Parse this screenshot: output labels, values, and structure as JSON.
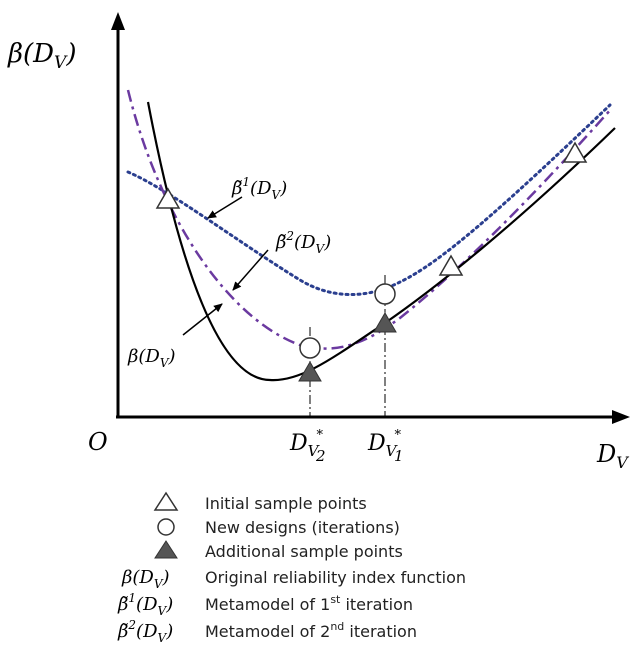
{
  "axes": {
    "y_label": "β(D",
    "y_label_sub": "V",
    "y_label_close": ")",
    "x_label": "D",
    "x_label_sub": "V",
    "origin": "O"
  },
  "markers": {
    "dv2_main": "D",
    "dv2_sub": "V",
    "dv2_sup": "*",
    "dv2_idx": "2",
    "dv1_main": "D",
    "dv1_sub": "V",
    "dv1_sup": "*",
    "dv1_idx": "1"
  },
  "curve_labels": {
    "beta1_main": "β̃",
    "beta1_sup": "1",
    "beta1_arg": "(D",
    "beta1_sub": "V",
    "beta1_close": ")",
    "beta2_main": "β̃",
    "beta2_sup": "2",
    "beta2_arg": "(D",
    "beta2_sub": "V",
    "beta2_close": ")",
    "beta_main": "β(D",
    "beta_sub": "V",
    "beta_close": ")"
  },
  "legend": {
    "initial": "Initial sample points",
    "new_designs": "New designs (iterations)",
    "additional": "Additional sample points",
    "original_sym": "β(D",
    "original_sub": "V",
    "original_close": ")",
    "original_text": "Original reliability index function",
    "meta1_sym": "β̃",
    "meta1_sup": "1",
    "meta1_arg": "(D",
    "meta1_sub": "V",
    "meta1_close": ")",
    "meta1_text_pre": "Metamodel of 1",
    "meta1_text_sup": "st",
    "meta1_text_post": " iteration",
    "meta2_sym": "β̃",
    "meta2_sup": "2",
    "meta2_arg": "(D",
    "meta2_sub": "V",
    "meta2_close": ")",
    "meta2_text_pre": "Metamodel of 2",
    "meta2_text_sup": "nd",
    "meta2_text_post": " iteration"
  },
  "colors": {
    "axis": "#000000",
    "original_curve": "#000000",
    "metamodel1": "#2b3f8f",
    "metamodel2": "#6b3aa0",
    "additional_fill": "#555555"
  }
}
